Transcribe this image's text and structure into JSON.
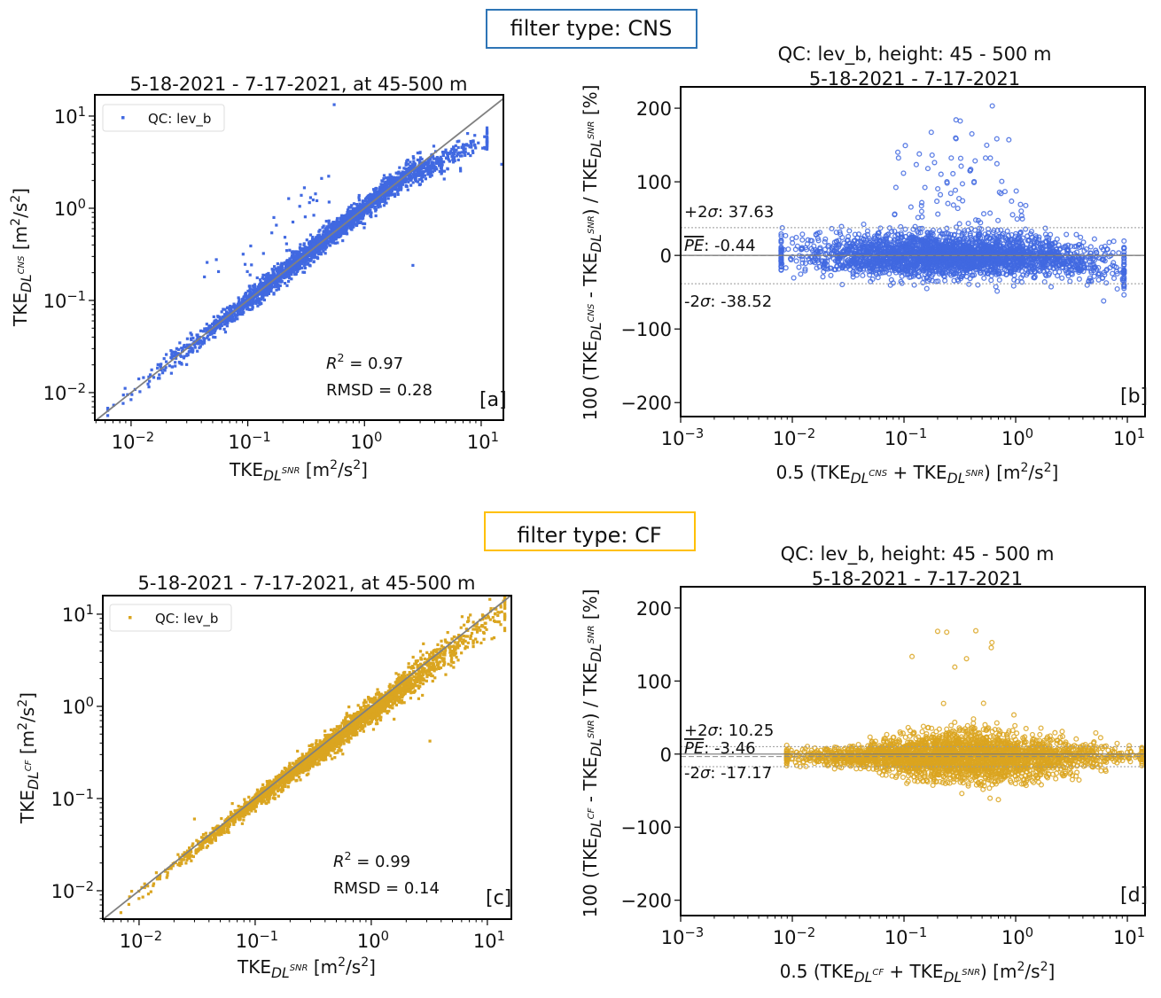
{
  "filters": [
    {
      "label": "filter type: CNS",
      "border_color": "#2e75b6"
    },
    {
      "label": "filter type: CF",
      "border_color": "#ffc000"
    }
  ],
  "chart_data": [
    {
      "panel": "[a]",
      "type": "scatter",
      "title": [
        "5-18-2021  -  7-17-2021, at 45-500 m"
      ],
      "color": "#4169e1",
      "marker": "square",
      "xscale": "log",
      "yscale": "log",
      "xlim": [
        0.00489,
        15.5
      ],
      "ylim": [
        0.00503,
        17.0
      ],
      "xticks": [
        0.01,
        0.1,
        1,
        10
      ],
      "yticks": [
        0.01,
        0.1,
        1,
        10
      ],
      "xtick_labels": [
        [
          [
            "10",
            "n"
          ],
          [
            "−2",
            "sup"
          ]
        ],
        [
          [
            "10",
            "n"
          ],
          [
            "−1",
            "sup"
          ]
        ],
        [
          [
            "10",
            "n"
          ],
          [
            "0",
            "sup"
          ]
        ],
        [
          [
            "10",
            "n"
          ],
          [
            "1",
            "sup"
          ]
        ]
      ],
      "ytick_labels": [
        [
          [
            "10",
            "n"
          ],
          [
            "−2",
            "sup"
          ]
        ],
        [
          [
            "10",
            "n"
          ],
          [
            "−1",
            "sup"
          ]
        ],
        [
          [
            "10",
            "n"
          ],
          [
            "0",
            "sup"
          ]
        ],
        [
          [
            "10",
            "n"
          ],
          [
            "1",
            "sup"
          ]
        ]
      ],
      "xlabel": [
        [
          "TKE",
          "n"
        ],
        [
          "DL",
          "sub"
        ],
        [
          "SNR",
          "ss"
        ],
        [
          "   [m",
          "n"
        ],
        [
          "2",
          "sup"
        ],
        [
          "/s",
          "n"
        ],
        [
          "2",
          "sup"
        ],
        [
          "]",
          "n"
        ]
      ],
      "ylabel": [
        [
          "TKE",
          "n"
        ],
        [
          "DL",
          "sub"
        ],
        [
          "CNS",
          "ss"
        ],
        [
          "   [m",
          "n"
        ],
        [
          "2",
          "sup"
        ],
        [
          "/s",
          "n"
        ],
        [
          "2",
          "sup"
        ],
        [
          "]",
          "n"
        ]
      ],
      "legend": {
        "label": "QC: lev_b",
        "placement": "top-left"
      },
      "one_to_one_line": true,
      "stats": [
        [
          [
            "R",
            "it"
          ],
          [
            "2",
            "sup"
          ],
          [
            " = 0.97",
            "n"
          ]
        ],
        [
          [
            "RMSD = 0.28",
            "n"
          ]
        ]
      ]
    },
    {
      "panel": "[b]",
      "type": "scatter",
      "title": [
        "QC: lev_b, height: 45 - 500 m",
        "5-18-2021  -  7-17-2021"
      ],
      "color": "#4169e1",
      "marker": "open-circle",
      "xscale": "log",
      "yscale": "linear",
      "xlim": [
        0.001,
        14.4
      ],
      "ylim": [
        -219,
        229
      ],
      "xticks": [
        0.001,
        0.01,
        0.1,
        1,
        10
      ],
      "yticks": [
        -200,
        -100,
        0,
        100,
        200
      ],
      "xtick_labels": [
        [
          [
            "10",
            "n"
          ],
          [
            "−3",
            "sup"
          ]
        ],
        [
          [
            "10",
            "n"
          ],
          [
            "−2",
            "sup"
          ]
        ],
        [
          [
            "10",
            "n"
          ],
          [
            "−1",
            "sup"
          ]
        ],
        [
          [
            "10",
            "n"
          ],
          [
            "0",
            "sup"
          ]
        ],
        [
          [
            "10",
            "n"
          ],
          [
            "1",
            "sup"
          ]
        ]
      ],
      "ytick_labels": [
        [
          [
            "−200",
            "n"
          ]
        ],
        [
          [
            "−100",
            "n"
          ]
        ],
        [
          [
            "0",
            "n"
          ]
        ],
        [
          [
            "100",
            "n"
          ]
        ],
        [
          [
            "200",
            "n"
          ]
        ]
      ],
      "xlabel": [
        [
          "0.5 (TKE",
          "n"
        ],
        [
          "DL",
          "sub"
        ],
        [
          "CNS",
          "ss"
        ],
        [
          " + TKE",
          "n"
        ],
        [
          "DL",
          "sub"
        ],
        [
          "SNR",
          "ss"
        ],
        [
          ")   [m",
          "n"
        ],
        [
          "2",
          "sup"
        ],
        [
          "/s",
          "n"
        ],
        [
          "2",
          "sup"
        ],
        [
          "]",
          "n"
        ]
      ],
      "ylabel": [
        [
          "100 (TKE",
          "n"
        ],
        [
          "DL",
          "sub"
        ],
        [
          "CNS",
          "ss"
        ],
        [
          " - TKE",
          "n"
        ],
        [
          "DL",
          "sub"
        ],
        [
          "SNR",
          "ss"
        ],
        [
          ") / TKE",
          "n"
        ],
        [
          "DL",
          "sub"
        ],
        [
          "SNR",
          "ss"
        ],
        [
          "   [%]",
          "n"
        ]
      ],
      "hlines": {
        "plus_2sigma": 37.63,
        "mean_pe": -0.44,
        "minus_2sigma": -38.52
      },
      "hline_labels": [
        [
          [
            "+2",
            "n"
          ],
          [
            "σ",
            "it"
          ],
          [
            ": 37.63",
            "n"
          ]
        ],
        [
          [
            "PE",
            "ol"
          ],
          [
            ": -0.44",
            "n"
          ]
        ],
        [
          [
            "-2",
            "n"
          ],
          [
            "σ",
            "it"
          ],
          [
            ": -38.52",
            "n"
          ]
        ]
      ]
    },
    {
      "panel": "[c]",
      "type": "scatter",
      "title": [
        "5-18-2021  -  7-17-2021, at 45-500 m"
      ],
      "color": "#daa520",
      "marker": "square",
      "xscale": "log",
      "yscale": "log",
      "xlim": [
        0.00487,
        16.1
      ],
      "ylim": [
        0.00492,
        15.9
      ],
      "xticks": [
        0.01,
        0.1,
        1,
        10
      ],
      "yticks": [
        0.01,
        0.1,
        1,
        10
      ],
      "xtick_labels": [
        [
          [
            "10",
            "n"
          ],
          [
            "−2",
            "sup"
          ]
        ],
        [
          [
            "10",
            "n"
          ],
          [
            "−1",
            "sup"
          ]
        ],
        [
          [
            "10",
            "n"
          ],
          [
            "0",
            "sup"
          ]
        ],
        [
          [
            "10",
            "n"
          ],
          [
            "1",
            "sup"
          ]
        ]
      ],
      "ytick_labels": [
        [
          [
            "10",
            "n"
          ],
          [
            "−2",
            "sup"
          ]
        ],
        [
          [
            "10",
            "n"
          ],
          [
            "−1",
            "sup"
          ]
        ],
        [
          [
            "10",
            "n"
          ],
          [
            "0",
            "sup"
          ]
        ],
        [
          [
            "10",
            "n"
          ],
          [
            "1",
            "sup"
          ]
        ]
      ],
      "xlabel": [
        [
          "TKE",
          "n"
        ],
        [
          "DL",
          "sub"
        ],
        [
          "SNR",
          "ss"
        ],
        [
          "   [m",
          "n"
        ],
        [
          "2",
          "sup"
        ],
        [
          "/s",
          "n"
        ],
        [
          "2",
          "sup"
        ],
        [
          "]",
          "n"
        ]
      ],
      "ylabel": [
        [
          "TKE",
          "n"
        ],
        [
          "DL",
          "sub"
        ],
        [
          "CF",
          "ss"
        ],
        [
          "   [m",
          "n"
        ],
        [
          "2",
          "sup"
        ],
        [
          "/s",
          "n"
        ],
        [
          "2",
          "sup"
        ],
        [
          "]",
          "n"
        ]
      ],
      "legend": {
        "label": "QC: lev_b",
        "placement": "top-left"
      },
      "one_to_one_line": true,
      "stats": [
        [
          [
            "R",
            "it"
          ],
          [
            "2",
            "sup"
          ],
          [
            " = 0.99",
            "n"
          ]
        ],
        [
          [
            "RMSD = 0.14",
            "n"
          ]
        ]
      ]
    },
    {
      "panel": "[d]",
      "type": "scatter",
      "title": [
        "QC: lev_b, height: 45 - 500 m",
        "5-18-2021  -  7-17-2021"
      ],
      "color": "#daa520",
      "marker": "open-circle",
      "xscale": "log",
      "yscale": "linear",
      "xlim": [
        0.001,
        14.4
      ],
      "ylim": [
        -221,
        229
      ],
      "xticks": [
        0.001,
        0.01,
        0.1,
        1,
        10
      ],
      "yticks": [
        -200,
        -100,
        0,
        100,
        200
      ],
      "xtick_labels": [
        [
          [
            "10",
            "n"
          ],
          [
            "−3",
            "sup"
          ]
        ],
        [
          [
            "10",
            "n"
          ],
          [
            "−2",
            "sup"
          ]
        ],
        [
          [
            "10",
            "n"
          ],
          [
            "−1",
            "sup"
          ]
        ],
        [
          [
            "10",
            "n"
          ],
          [
            "0",
            "sup"
          ]
        ],
        [
          [
            "10",
            "n"
          ],
          [
            "1",
            "sup"
          ]
        ]
      ],
      "ytick_labels": [
        [
          [
            "−200",
            "n"
          ]
        ],
        [
          [
            "−100",
            "n"
          ]
        ],
        [
          [
            "0",
            "n"
          ]
        ],
        [
          [
            "100",
            "n"
          ]
        ],
        [
          [
            "200",
            "n"
          ]
        ]
      ],
      "xlabel": [
        [
          "0.5 (TKE",
          "n"
        ],
        [
          "DL",
          "sub"
        ],
        [
          "CF",
          "ss"
        ],
        [
          " + TKE",
          "n"
        ],
        [
          "DL",
          "sub"
        ],
        [
          "SNR",
          "ss"
        ],
        [
          ")   [m",
          "n"
        ],
        [
          "2",
          "sup"
        ],
        [
          "/s",
          "n"
        ],
        [
          "2",
          "sup"
        ],
        [
          "]",
          "n"
        ]
      ],
      "ylabel": [
        [
          "100 (TKE",
          "n"
        ],
        [
          "DL",
          "sub"
        ],
        [
          "CF",
          "ss"
        ],
        [
          " - TKE",
          "n"
        ],
        [
          "DL",
          "sub"
        ],
        [
          "SNR",
          "ss"
        ],
        [
          ") / TKE",
          "n"
        ],
        [
          "DL",
          "sub"
        ],
        [
          "SNR",
          "ss"
        ],
        [
          "   [%]",
          "n"
        ]
      ],
      "hlines": {
        "plus_2sigma": 10.25,
        "mean_pe": -3.46,
        "minus_2sigma": -17.17
      },
      "hline_labels": [
        [
          [
            "+2",
            "n"
          ],
          [
            "σ",
            "it"
          ],
          [
            ": 10.25",
            "n"
          ]
        ],
        [
          [
            "PE",
            "ol"
          ],
          [
            ": -3.46",
            "n"
          ]
        ],
        [
          [
            "-2",
            "n"
          ],
          [
            "σ",
            "it"
          ],
          [
            ": -17.17",
            "n"
          ]
        ]
      ]
    }
  ]
}
